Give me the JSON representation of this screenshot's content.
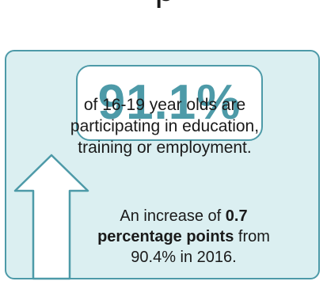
{
  "title_fragment": "p",
  "headline_stat": {
    "value": "91.1%",
    "description": "of 16-19 year olds are participating in education, training or employment."
  },
  "change_note": {
    "prefix": "An increase of ",
    "highlight": "0.7 percentage points",
    "suffix": " from 90.4% in 2016."
  },
  "icons": {
    "up_arrow": "up-arrow-icon"
  },
  "colors": {
    "accent": "#4d9aa8",
    "card_fill": "#dbeff1",
    "text": "#1a1a1a"
  }
}
